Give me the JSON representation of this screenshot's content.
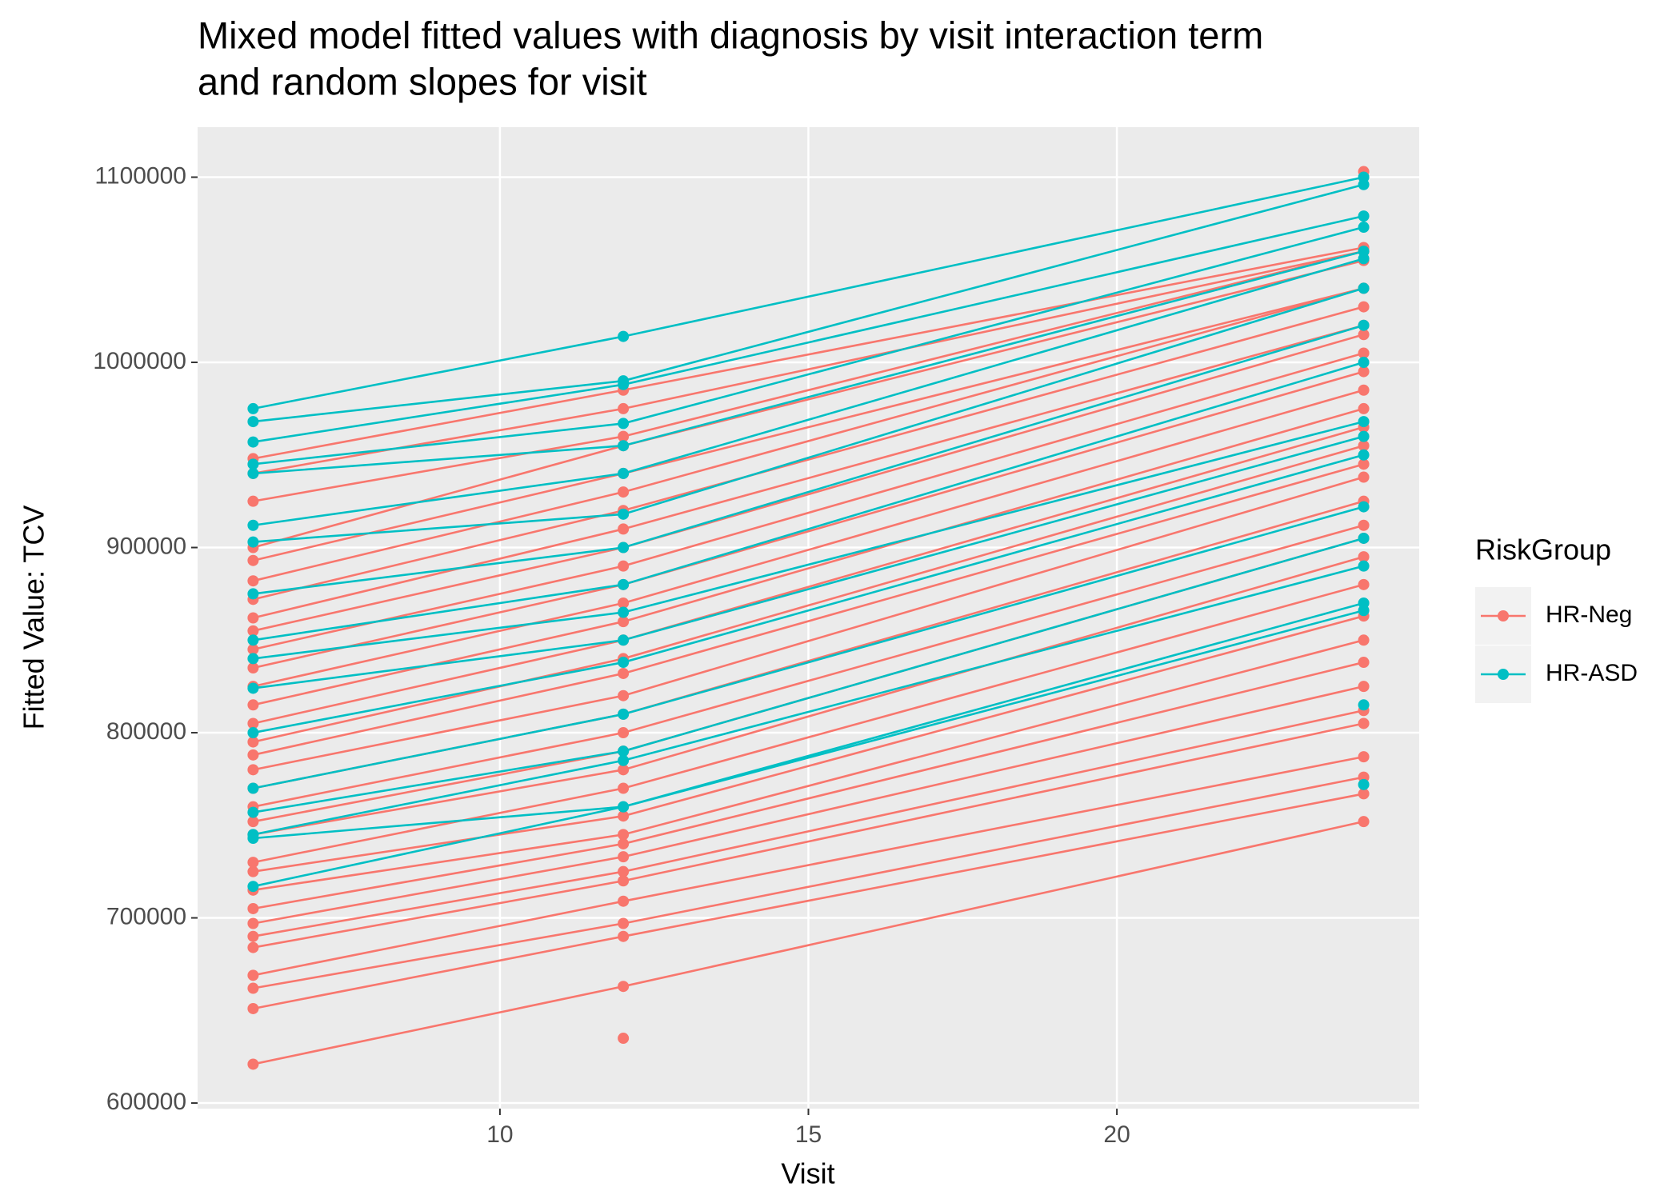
{
  "chart_data": {
    "type": "line",
    "title": [
      "Mixed model fitted values with diagnosis by visit interaction term",
      "and random slopes for visit"
    ],
    "xlabel": "Visit",
    "ylabel": "Fitted Value: TCV",
    "legend_title": "RiskGroup",
    "legend": "right",
    "x": [
      6,
      12,
      24
    ],
    "xlim": [
      5.1,
      24.9
    ],
    "xticks": [
      10,
      15,
      20
    ],
    "ylim": [
      597000,
      1127000
    ],
    "yticks": [
      600000,
      700000,
      800000,
      900000,
      1000000,
      1100000
    ],
    "grid": true,
    "series": [
      {
        "name": "HR-Neg",
        "color": "#F8766D",
        "lines": [
          [
            621000,
            663000,
            752000
          ],
          [
            651000,
            690000,
            767000
          ],
          [
            662000,
            697000,
            776000
          ],
          [
            669000,
            709000,
            787000
          ],
          [
            684000,
            720000,
            805000
          ],
          [
            690000,
            725000,
            812000
          ],
          [
            697000,
            733000,
            825000
          ],
          [
            705000,
            740000,
            838000
          ],
          [
            715000,
            745000,
            850000
          ],
          [
            725000,
            755000,
            863000
          ],
          [
            730000,
            770000,
            880000
          ],
          [
            745000,
            780000,
            895000
          ],
          [
            752000,
            790000,
            905000
          ],
          [
            760000,
            800000,
            912000
          ],
          [
            770000,
            810000,
            925000
          ],
          [
            780000,
            820000,
            938000
          ],
          [
            788000,
            832000,
            945000
          ],
          [
            795000,
            840000,
            955000
          ],
          [
            805000,
            850000,
            965000
          ],
          [
            815000,
            860000,
            975000
          ],
          [
            825000,
            870000,
            985000
          ],
          [
            835000,
            880000,
            995000
          ],
          [
            845000,
            890000,
            1005000
          ],
          [
            855000,
            900000,
            1015000
          ],
          [
            862000,
            910000,
            1020000
          ],
          [
            872000,
            920000,
            1030000
          ],
          [
            882000,
            930000,
            1040000
          ],
          [
            893000,
            940000,
            1040000
          ],
          [
            900000,
            955000,
            1055000
          ],
          [
            925000,
            960000,
            1060000
          ],
          [
            940000,
            975000,
            1060000
          ],
          [
            948000,
            985000,
            1062000
          ],
          [
            null,
            null,
            1103000
          ],
          [
            null,
            635000,
            null
          ]
        ]
      },
      {
        "name": "HR-ASD",
        "color": "#00BFC4",
        "lines": [
          [
            975000,
            1014000,
            1100000
          ],
          [
            968000,
            990000,
            1096000
          ],
          [
            957000,
            988000,
            1079000
          ],
          [
            945000,
            967000,
            1073000
          ],
          [
            940000,
            955000,
            1060000
          ],
          [
            912000,
            940000,
            1056000
          ],
          [
            903000,
            918000,
            1040000
          ],
          [
            875000,
            900000,
            1020000
          ],
          [
            850000,
            880000,
            1000000
          ],
          [
            840000,
            865000,
            968000
          ],
          [
            824000,
            850000,
            960000
          ],
          [
            800000,
            838000,
            950000
          ],
          [
            770000,
            810000,
            922000
          ],
          [
            757000,
            790000,
            905000
          ],
          [
            745000,
            785000,
            890000
          ],
          [
            743000,
            760000,
            870000
          ],
          [
            717000,
            760000,
            866000
          ],
          [
            null,
            null,
            772000
          ],
          [
            null,
            null,
            815000
          ]
        ]
      }
    ]
  }
}
